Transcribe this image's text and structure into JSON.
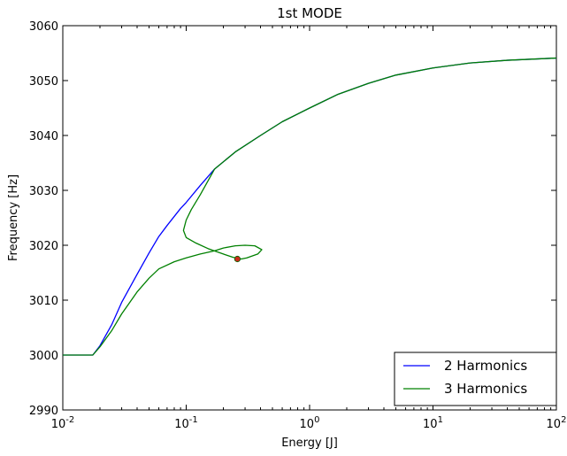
{
  "chart_data": {
    "type": "line",
    "title": "1st MODE",
    "xlabel": "Energy [J]",
    "ylabel": "Frequency [Hz]",
    "x_scale": "log",
    "xlim": [
      0.01,
      100
    ],
    "ylim": [
      2990,
      3060
    ],
    "x_ticks": [
      {
        "value": 0.01,
        "base": "10",
        "exp": "-2"
      },
      {
        "value": 0.1,
        "base": "10",
        "exp": "-1"
      },
      {
        "value": 1,
        "base": "10",
        "exp": "0"
      },
      {
        "value": 10,
        "base": "10",
        "exp": "1"
      },
      {
        "value": 100,
        "base": "10",
        "exp": "2"
      }
    ],
    "y_ticks": [
      2990,
      3000,
      3010,
      3020,
      3030,
      3040,
      3050,
      3060
    ],
    "grid": false,
    "legend_position": "lower-right",
    "series": [
      {
        "name": "2 Harmonics",
        "color": "#0000ff",
        "points": [
          [
            0.01,
            3000
          ],
          [
            0.0175,
            3000
          ],
          [
            0.02,
            3001.7
          ],
          [
            0.025,
            3005.6
          ],
          [
            0.03,
            3009.6
          ],
          [
            0.04,
            3014.7
          ],
          [
            0.05,
            3018.6
          ],
          [
            0.06,
            3021.6
          ],
          [
            0.07,
            3023.6
          ],
          [
            0.09,
            3026.7
          ],
          [
            0.1,
            3027.8
          ],
          [
            0.13,
            3030.9
          ],
          [
            0.17,
            3033.9
          ],
          [
            0.25,
            3037.0
          ],
          [
            0.4,
            3040.0
          ],
          [
            0.6,
            3042.5
          ],
          [
            1.0,
            3045.0
          ],
          [
            1.7,
            3047.5
          ],
          [
            3.0,
            3049.5
          ],
          [
            5.0,
            3051.0
          ],
          [
            10,
            3052.3
          ],
          [
            20,
            3053.2
          ],
          [
            40,
            3053.7
          ],
          [
            100,
            3054.1
          ]
        ]
      },
      {
        "name": "3 Harmonics",
        "color": "#008000",
        "points": [
          [
            0.01,
            3000
          ],
          [
            0.0175,
            3000
          ],
          [
            0.02,
            3001.5
          ],
          [
            0.025,
            3004.5
          ],
          [
            0.03,
            3007.5
          ],
          [
            0.04,
            3011.5
          ],
          [
            0.05,
            3014.0
          ],
          [
            0.06,
            3015.7
          ],
          [
            0.08,
            3017.0
          ],
          [
            0.1,
            3017.7
          ],
          [
            0.13,
            3018.4
          ],
          [
            0.17,
            3019.0
          ],
          [
            0.2,
            3019.5
          ],
          [
            0.25,
            3019.9
          ],
          [
            0.3,
            3020.0
          ],
          [
            0.36,
            3019.9
          ],
          [
            0.41,
            3019.2
          ],
          [
            0.38,
            3018.4
          ],
          [
            0.31,
            3017.7
          ],
          [
            0.28,
            3017.5
          ],
          [
            0.24,
            3017.8
          ],
          [
            0.2,
            3018.4
          ],
          [
            0.15,
            3019.4
          ],
          [
            0.12,
            3020.4
          ],
          [
            0.1,
            3021.4
          ],
          [
            0.095,
            3022.7
          ],
          [
            0.1,
            3024.6
          ],
          [
            0.11,
            3026.5
          ],
          [
            0.13,
            3029.2
          ],
          [
            0.17,
            3033.9
          ],
          [
            0.25,
            3037.0
          ],
          [
            0.4,
            3040.0
          ],
          [
            0.6,
            3042.5
          ],
          [
            1.0,
            3045.0
          ],
          [
            1.7,
            3047.5
          ],
          [
            3.0,
            3049.5
          ],
          [
            5.0,
            3051.0
          ],
          [
            10,
            3052.3
          ],
          [
            20,
            3053.2
          ],
          [
            40,
            3053.7
          ],
          [
            100,
            3054.1
          ]
        ]
      }
    ],
    "marker": {
      "x": 0.26,
      "y": 3017.5,
      "color": "#cc2a1a"
    }
  }
}
